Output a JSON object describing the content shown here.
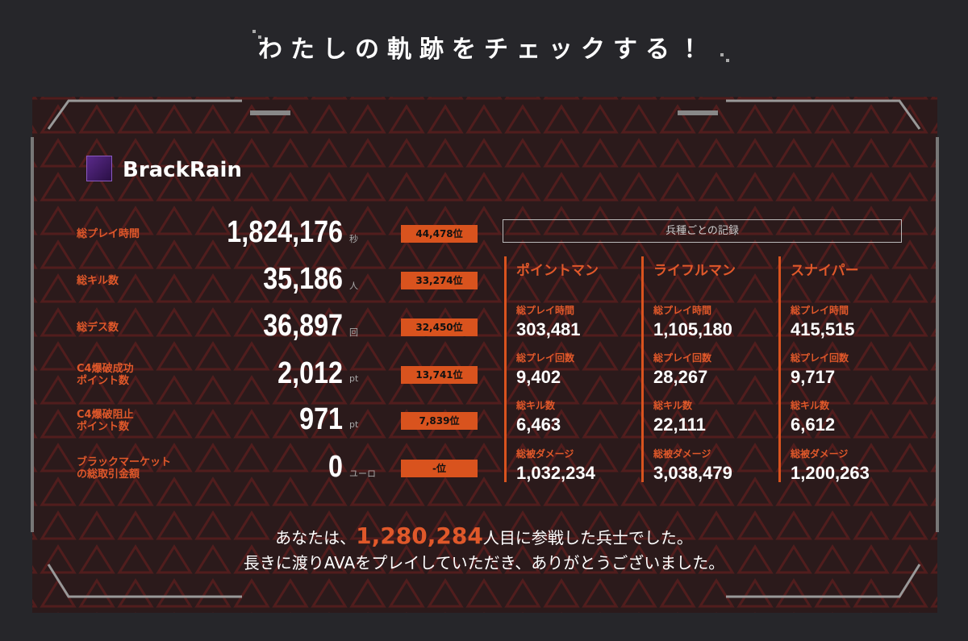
{
  "header": {
    "title": "わたしの軌跡をチェックする！"
  },
  "player": {
    "name": "BrackRain"
  },
  "stats": [
    {
      "label": [
        "総プレイ時間"
      ],
      "value": "1,824,176",
      "unit": "秒",
      "rank": "44,478位"
    },
    {
      "label": [
        "総キル数"
      ],
      "value": "35,186",
      "unit": "人",
      "rank": "33,274位"
    },
    {
      "label": [
        "総デス数"
      ],
      "value": "36,897",
      "unit": "回",
      "rank": "32,450位"
    },
    {
      "label": [
        "C4爆破成功",
        "ポイント数"
      ],
      "value": "2,012",
      "unit": "pt",
      "rank": "13,741位"
    },
    {
      "label": [
        "C4爆破阻止",
        "ポイント数"
      ],
      "value": "971",
      "unit": "pt",
      "rank": "7,839位"
    },
    {
      "label": [
        "ブラックマーケット",
        "の総取引金額"
      ],
      "value": "0",
      "unit": "ユーロ",
      "rank": "-位"
    }
  ],
  "class_records": {
    "title": "兵種ごとの記録",
    "classes": [
      {
        "name": "ポイントマン",
        "stats": [
          {
            "label": "総プレイ時間",
            "value": "303,481"
          },
          {
            "label": "総プレイ回数",
            "value": "9,402"
          },
          {
            "label": "総キル数",
            "value": "6,463"
          },
          {
            "label": "総被ダメージ",
            "value": "1,032,234"
          }
        ]
      },
      {
        "name": "ライフルマン",
        "stats": [
          {
            "label": "総プレイ時間",
            "value": "1,105,180"
          },
          {
            "label": "総プレイ回数",
            "value": "28,267"
          },
          {
            "label": "総キル数",
            "value": "22,111"
          },
          {
            "label": "総被ダメージ",
            "value": "3,038,479"
          }
        ]
      },
      {
        "name": "スナイパー",
        "stats": [
          {
            "label": "総プレイ時間",
            "value": "415,515"
          },
          {
            "label": "総プレイ回数",
            "value": "9,717"
          },
          {
            "label": "総キル数",
            "value": "6,612"
          },
          {
            "label": "総被ダメージ",
            "value": "1,200,263"
          }
        ]
      }
    ]
  },
  "footer": {
    "line1": [
      "あなたは、",
      "1,280,284",
      "人目に参戦した兵士でした。"
    ],
    "line2": "長きに渡りAVAをプレイしていただき、ありがとうございました。"
  }
}
